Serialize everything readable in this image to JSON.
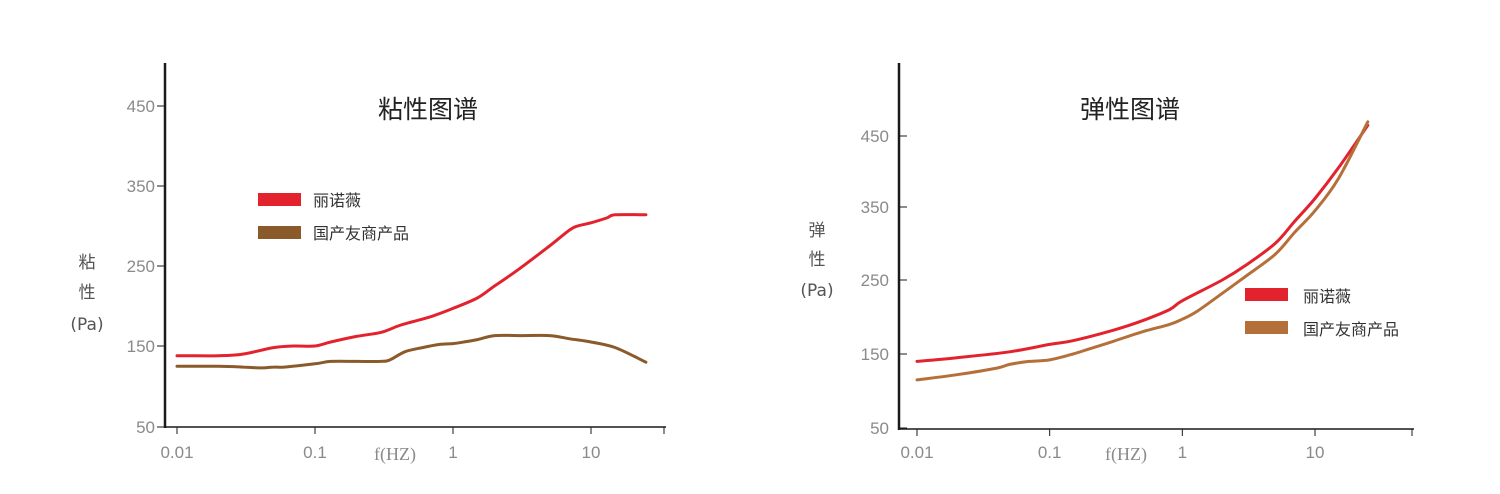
{
  "chart_data": [
    {
      "type": "line",
      "title": "粘性图谱",
      "xlabel": "f(HZ)",
      "ylabel": [
        "粘",
        "性",
        "(Pa)"
      ],
      "xscale": "log",
      "xlim": [
        0.01,
        30
      ],
      "ylim": [
        50,
        500
      ],
      "xticks": [
        0.01,
        0.1,
        1,
        10
      ],
      "xtick_labels": [
        "0.01",
        "0.1",
        "1",
        "10"
      ],
      "yticks": [
        50,
        150,
        250,
        350,
        450
      ],
      "yaxis_ticks_side": "left",
      "legend_placement": "upper-middle",
      "grid": false,
      "series": [
        {
          "name": "丽诺薇",
          "color": "#e2232e",
          "x": [
            0.01,
            0.012,
            0.02,
            0.03,
            0.05,
            0.07,
            0.1,
            0.13,
            0.2,
            0.3,
            0.4,
            0.5,
            0.7,
            1,
            1.5,
            2,
            3,
            5,
            7,
            8,
            10,
            13,
            15,
            25
          ],
          "y": [
            138,
            138,
            138,
            140,
            148,
            150,
            150,
            155,
            162,
            167,
            175,
            180,
            187,
            197,
            210,
            225,
            246,
            275,
            295,
            300,
            304,
            310,
            314,
            314
          ]
        },
        {
          "name": "国产友商产品",
          "color": "#8b5a2b",
          "x": [
            0.01,
            0.02,
            0.03,
            0.04,
            0.05,
            0.06,
            0.1,
            0.13,
            0.2,
            0.3,
            0.35,
            0.45,
            0.6,
            0.8,
            1,
            1.2,
            1.5,
            2,
            3,
            5,
            7,
            10,
            15,
            25
          ],
          "y": [
            125,
            125,
            124,
            123,
            124,
            124,
            128,
            131,
            131,
            131,
            133,
            143,
            148,
            152,
            153,
            155,
            158,
            163,
            163,
            163,
            159,
            155,
            148,
            130
          ]
        }
      ]
    },
    {
      "type": "line",
      "title": "弹性图谱",
      "xlabel": "f(HZ)",
      "ylabel": [
        "弹",
        "性",
        "(Pa)"
      ],
      "xscale": "log",
      "xlim": [
        0.007,
        30
      ],
      "ylim": [
        50,
        550
      ],
      "xticks": [
        0.01,
        0.1,
        1,
        10
      ],
      "xtick_labels": [
        "0.01",
        "0.1",
        "1",
        "10"
      ],
      "yticks": [
        50,
        150,
        250,
        350,
        450
      ],
      "yaxis_ticks_side": "right",
      "legend_placement": "lower-right",
      "grid": false,
      "series": [
        {
          "name": "丽诺薇",
          "color": "#e2232e",
          "x": [
            0.01,
            0.02,
            0.05,
            0.1,
            0.15,
            0.3,
            0.5,
            0.8,
            1,
            2,
            3,
            5,
            7,
            10,
            15,
            25
          ],
          "y": [
            140,
            145,
            153,
            163,
            168,
            182,
            195,
            210,
            222,
            250,
            270,
            300,
            330,
            362,
            405,
            465
          ]
        },
        {
          "name": "国产友商产品",
          "color": "#b5703a",
          "x": [
            0.01,
            0.02,
            0.04,
            0.05,
            0.07,
            0.1,
            0.15,
            0.2,
            0.3,
            0.5,
            0.8,
            1,
            1.3,
            2,
            3,
            5,
            7,
            10,
            15,
            25
          ],
          "y": [
            115,
            122,
            131,
            136,
            140,
            142,
            150,
            157,
            167,
            180,
            190,
            197,
            208,
            232,
            255,
            285,
            315,
            345,
            390,
            470
          ]
        }
      ]
    }
  ]
}
